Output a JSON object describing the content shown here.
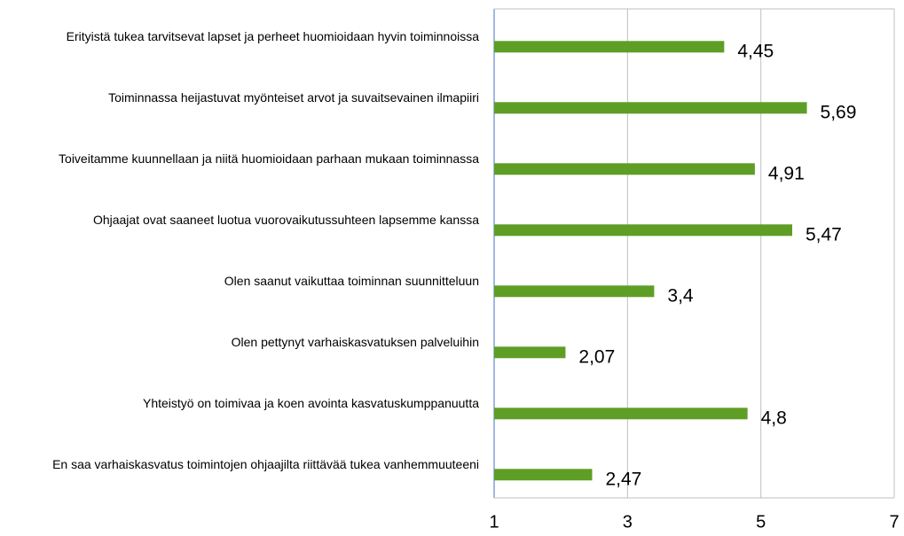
{
  "chart_data": {
    "type": "barh",
    "categories": [
      "Erityistä tukea tarvitsevat lapset ja perheet huomioidaan hyvin toiminnoissa",
      "Toiminnassa heijastuvat myönteiset arvot ja suvaitsevainen ilmapiiri",
      "Toiveitamme kuunnellaan ja niitä huomioidaan parhaan mukaan toiminnassa",
      "Ohjaajat ovat saaneet luotua vuorovaikutussuhteen lapsemme kanssa",
      "Olen saanut vaikuttaa toiminnan suunnitteluun",
      "Olen pettynyt varhaiskasvatuksen palveluihin",
      "Yhteistyö on toimivaa ja koen avointa kasvatuskumppanuutta",
      "En saa varhaiskasvatus toimintojen ohjaajilta riittävää tukea vanhemmuuteeni"
    ],
    "values": [
      4.45,
      5.69,
      4.91,
      5.47,
      3.4,
      2.07,
      4.8,
      2.47
    ],
    "value_labels": [
      "4,45",
      "5,69",
      "4,91",
      "5,47",
      "3,4",
      "2,07",
      "4,8",
      "2,47"
    ],
    "color": "#5e9e25",
    "xlim": [
      1,
      7
    ],
    "xticks": [
      1,
      3,
      5,
      7
    ],
    "grid": true
  }
}
